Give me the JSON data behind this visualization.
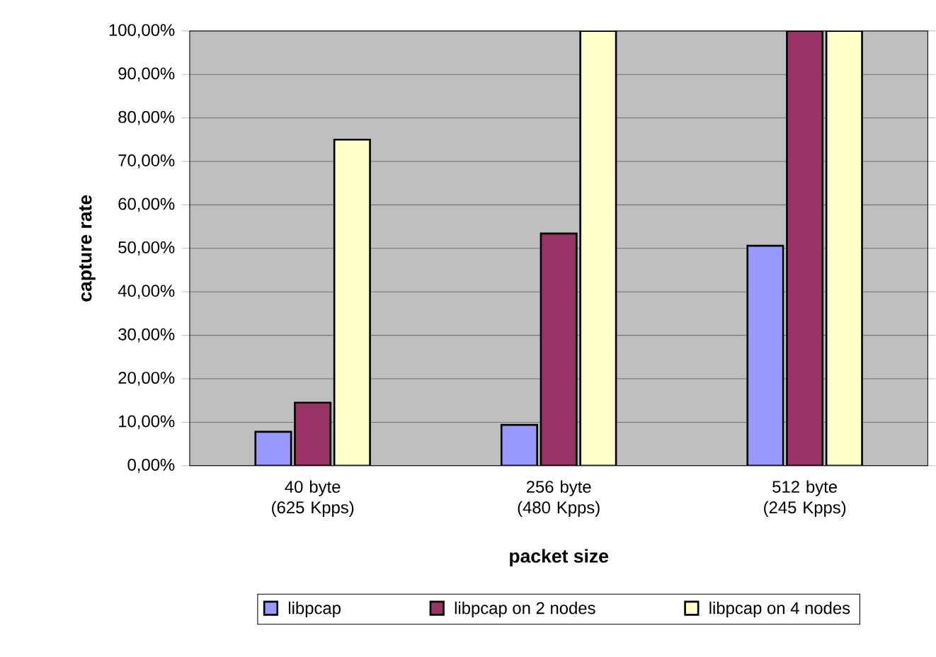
{
  "chart_data": {
    "type": "bar",
    "xlabel": "packet size",
    "ylabel": "capture rate",
    "categories": [
      "40 byte (625 Kpps)",
      "256 byte (480 Kpps)",
      "512 byte (245 Kpps)"
    ],
    "series": [
      {
        "name": "libpcap",
        "color": "#9999ff",
        "values": [
          7.8,
          9.4,
          50.6
        ]
      },
      {
        "name": "libpcap on 2 nodes",
        "color": "#993366",
        "values": [
          14.5,
          53.4,
          100
        ]
      },
      {
        "name": "libpcap on 4 nodes",
        "color": "#ffffcc",
        "values": [
          75.0,
          100,
          100
        ]
      }
    ],
    "ylim": [
      0,
      100
    ],
    "yticks": [
      {
        "value": 0,
        "label": "0,00%"
      },
      {
        "value": 10,
        "label": "10,00%"
      },
      {
        "value": 20,
        "label": "20,00%"
      },
      {
        "value": 30,
        "label": "30,00%"
      },
      {
        "value": 40,
        "label": "40,00%"
      },
      {
        "value": 50,
        "label": "50,00%"
      },
      {
        "value": 60,
        "label": "60,00%"
      },
      {
        "value": 70,
        "label": "70,00%"
      },
      {
        "value": 80,
        "label": "80,00%"
      },
      {
        "value": 90,
        "label": "90,00%"
      },
      {
        "value": 100,
        "label": "100,00%"
      }
    ],
    "grid": "y",
    "legend": "bottom"
  }
}
